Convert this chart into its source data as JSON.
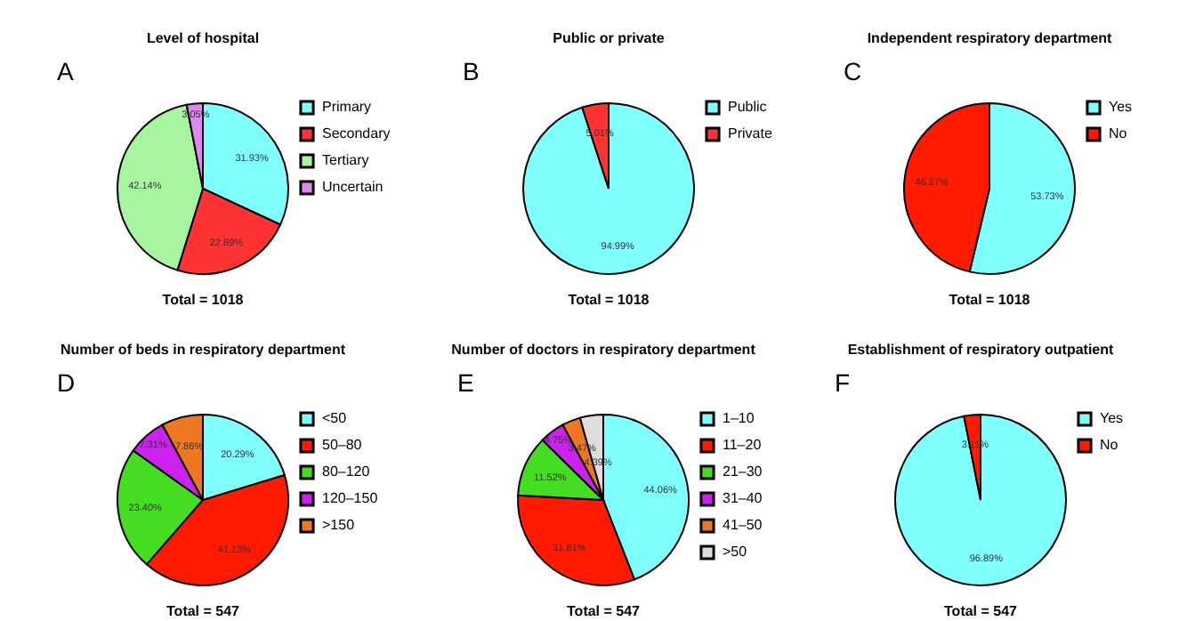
{
  "chart_data": [
    {
      "type": "pie",
      "title": "Level of hospital",
      "categories": [
        "Primary",
        "Secondary",
        "Tertiary",
        "Uncertain"
      ],
      "values": [
        31.93,
        22.89,
        42.14,
        3.05
      ],
      "colors": [
        "#80ffff",
        "#ff3333",
        "#a8f5a0",
        "#dd88ee"
      ],
      "value_labels": [
        "31.93%",
        "22.89%",
        "42.14%",
        "3.05%"
      ],
      "annotations": [
        "A",
        "Total = 1018"
      ],
      "legend": "top right"
    },
    {
      "type": "pie",
      "title": "Public or private",
      "categories": [
        "Public",
        "Private"
      ],
      "values": [
        94.99,
        5.01
      ],
      "colors": [
        "#80ffff",
        "#ff3333"
      ],
      "value_labels": [
        "94.99%",
        "5.01%"
      ],
      "annotations": [
        "B",
        "Total = 1018"
      ],
      "legend": "top right"
    },
    {
      "type": "pie",
      "title": "Independent respiratory department",
      "categories": [
        "Yes",
        "No"
      ],
      "values": [
        53.73,
        46.27
      ],
      "colors": [
        "#80ffff",
        "#ff1a00"
      ],
      "value_labels": [
        "53.73%",
        "46.27%"
      ],
      "annotations": [
        "C",
        "Total = 1018"
      ],
      "legend": "top right"
    },
    {
      "type": "pie",
      "title": "Number of beds in respiratory department",
      "categories": [
        "<50",
        "50–80",
        "80–120",
        "120–150",
        ">150"
      ],
      "values": [
        20.29,
        41.13,
        23.4,
        7.31,
        7.86
      ],
      "colors": [
        "#80ffff",
        "#ff1a00",
        "#44dd22",
        "#cc22ee",
        "#ee7722"
      ],
      "value_labels": [
        "20.29%",
        "41.13%",
        "23.40%",
        "7.31%",
        "7.86%"
      ],
      "annotations": [
        "D",
        "Total = 547"
      ],
      "legend": "top right"
    },
    {
      "type": "pie",
      "title": "Number of doctors in respiratory department",
      "categories": [
        "1–10",
        "11–20",
        "21–30",
        "31–40",
        "41–50",
        ">50"
      ],
      "values": [
        44.06,
        31.81,
        11.52,
        4.75,
        3.47,
        4.39
      ],
      "colors": [
        "#80ffff",
        "#ff1a00",
        "#44dd22",
        "#cc22ee",
        "#ee7722",
        "#dddddd"
      ],
      "value_labels": [
        "44.06%",
        "31.81%",
        "11.52%",
        "4.75%",
        "3.47%",
        "4.39%"
      ],
      "annotations": [
        "E",
        "Total = 547"
      ],
      "legend": "top right"
    },
    {
      "type": "pie",
      "title": "Establishment of respiratory outpatient",
      "categories": [
        "Yes",
        "No"
      ],
      "values": [
        96.89,
        3.11
      ],
      "colors": [
        "#80ffff",
        "#ff1a00"
      ],
      "value_labels": [
        "96.89%",
        "3.11%"
      ],
      "annotations": [
        "F",
        "Total = 547"
      ],
      "legend": "top right"
    }
  ]
}
